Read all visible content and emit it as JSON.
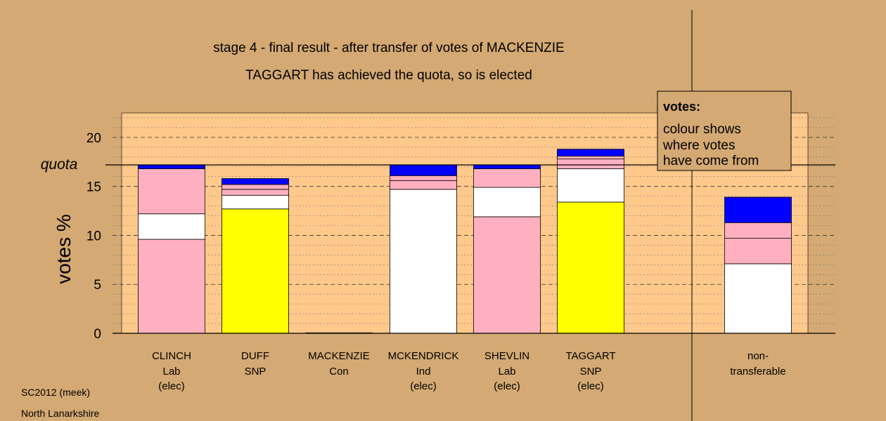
{
  "header": {
    "title_line1": "stage 4 - final result - after transfer of votes of MACKENZIE",
    "title_line2": "TAGGART has achieved the quota, so is elected"
  },
  "legend": {
    "heading": "votes:",
    "lines": [
      "colour shows",
      "where votes",
      "have come from"
    ]
  },
  "footer": {
    "line1": "SC2012 (meek)",
    "line2": "North Lanarkshire"
  },
  "colors": {
    "background": "#d4a973",
    "plot_area": "#ffc98c",
    "ind_white": "#ffffff",
    "lab_pink": "#ffb0c0",
    "snp_yellow": "#ffff00",
    "transfer_blue": "#0000ff"
  },
  "chart_data": {
    "type": "bar",
    "stacked": true,
    "ylabel": "votes %",
    "ylim": [
      0,
      22.5
    ],
    "yticks": [
      0,
      5,
      10,
      15,
      20
    ],
    "quota": {
      "label": "quota",
      "value": 17.2
    },
    "grid": "dashed at major ticks, dotted at minor ticks",
    "legend_position": "top-right",
    "categories": [
      {
        "name": "CLINCH",
        "party": "Lab",
        "status": "(elec)"
      },
      {
        "name": "DUFF",
        "party": "SNP",
        "status": ""
      },
      {
        "name": "MACKENZIE",
        "party": "Con",
        "status": ""
      },
      {
        "name": "MCKENDRICK",
        "party": "Ind",
        "status": "(elec)"
      },
      {
        "name": "SHEVLIN",
        "party": "Lab",
        "status": "(elec)"
      },
      {
        "name": "TAGGART",
        "party": "SNP",
        "status": "(elec)"
      },
      {
        "name": "non-",
        "party": "transferable",
        "status": ""
      }
    ],
    "bars": [
      [
        {
          "color": "#ffb0c0",
          "value": 9.6
        },
        {
          "color": "#ffffff",
          "value": 2.6
        },
        {
          "color": "#ffb0c0",
          "value": 4.6
        },
        {
          "color": "#0000ff",
          "value": 0.4
        }
      ],
      [
        {
          "color": "#ffff00",
          "value": 12.7
        },
        {
          "color": "#ffffff",
          "value": 1.4
        },
        {
          "color": "#ffb0c0",
          "value": 0.6
        },
        {
          "color": "#ffb0c0",
          "value": 0.5
        },
        {
          "color": "#0000ff",
          "value": 0.6
        }
      ],
      [
        {
          "color": "#0000ff",
          "value": 0.05
        }
      ],
      [
        {
          "color": "#ffffff",
          "value": 14.7
        },
        {
          "color": "#ffb0c0",
          "value": 0.9
        },
        {
          "color": "#ffb0c0",
          "value": 0.5
        },
        {
          "color": "#0000ff",
          "value": 1.1
        }
      ],
      [
        {
          "color": "#ffb0c0",
          "value": 11.9
        },
        {
          "color": "#ffffff",
          "value": 3.0
        },
        {
          "color": "#ffb0c0",
          "value": 1.9
        },
        {
          "color": "#0000ff",
          "value": 0.4
        }
      ],
      [
        {
          "color": "#ffff00",
          "value": 13.4
        },
        {
          "color": "#ffffff",
          "value": 3.4
        },
        {
          "color": "#ffb0c0",
          "value": 1.0
        },
        {
          "color": "#ffb0c0",
          "value": 0.3
        },
        {
          "color": "#0000ff",
          "value": 0.7
        }
      ],
      [
        {
          "color": "#ffffff",
          "value": 7.1
        },
        {
          "color": "#ffb0c0",
          "value": 2.6
        },
        {
          "color": "#ffb0c0",
          "value": 1.6
        },
        {
          "color": "#0000ff",
          "value": 2.6
        }
      ]
    ]
  }
}
